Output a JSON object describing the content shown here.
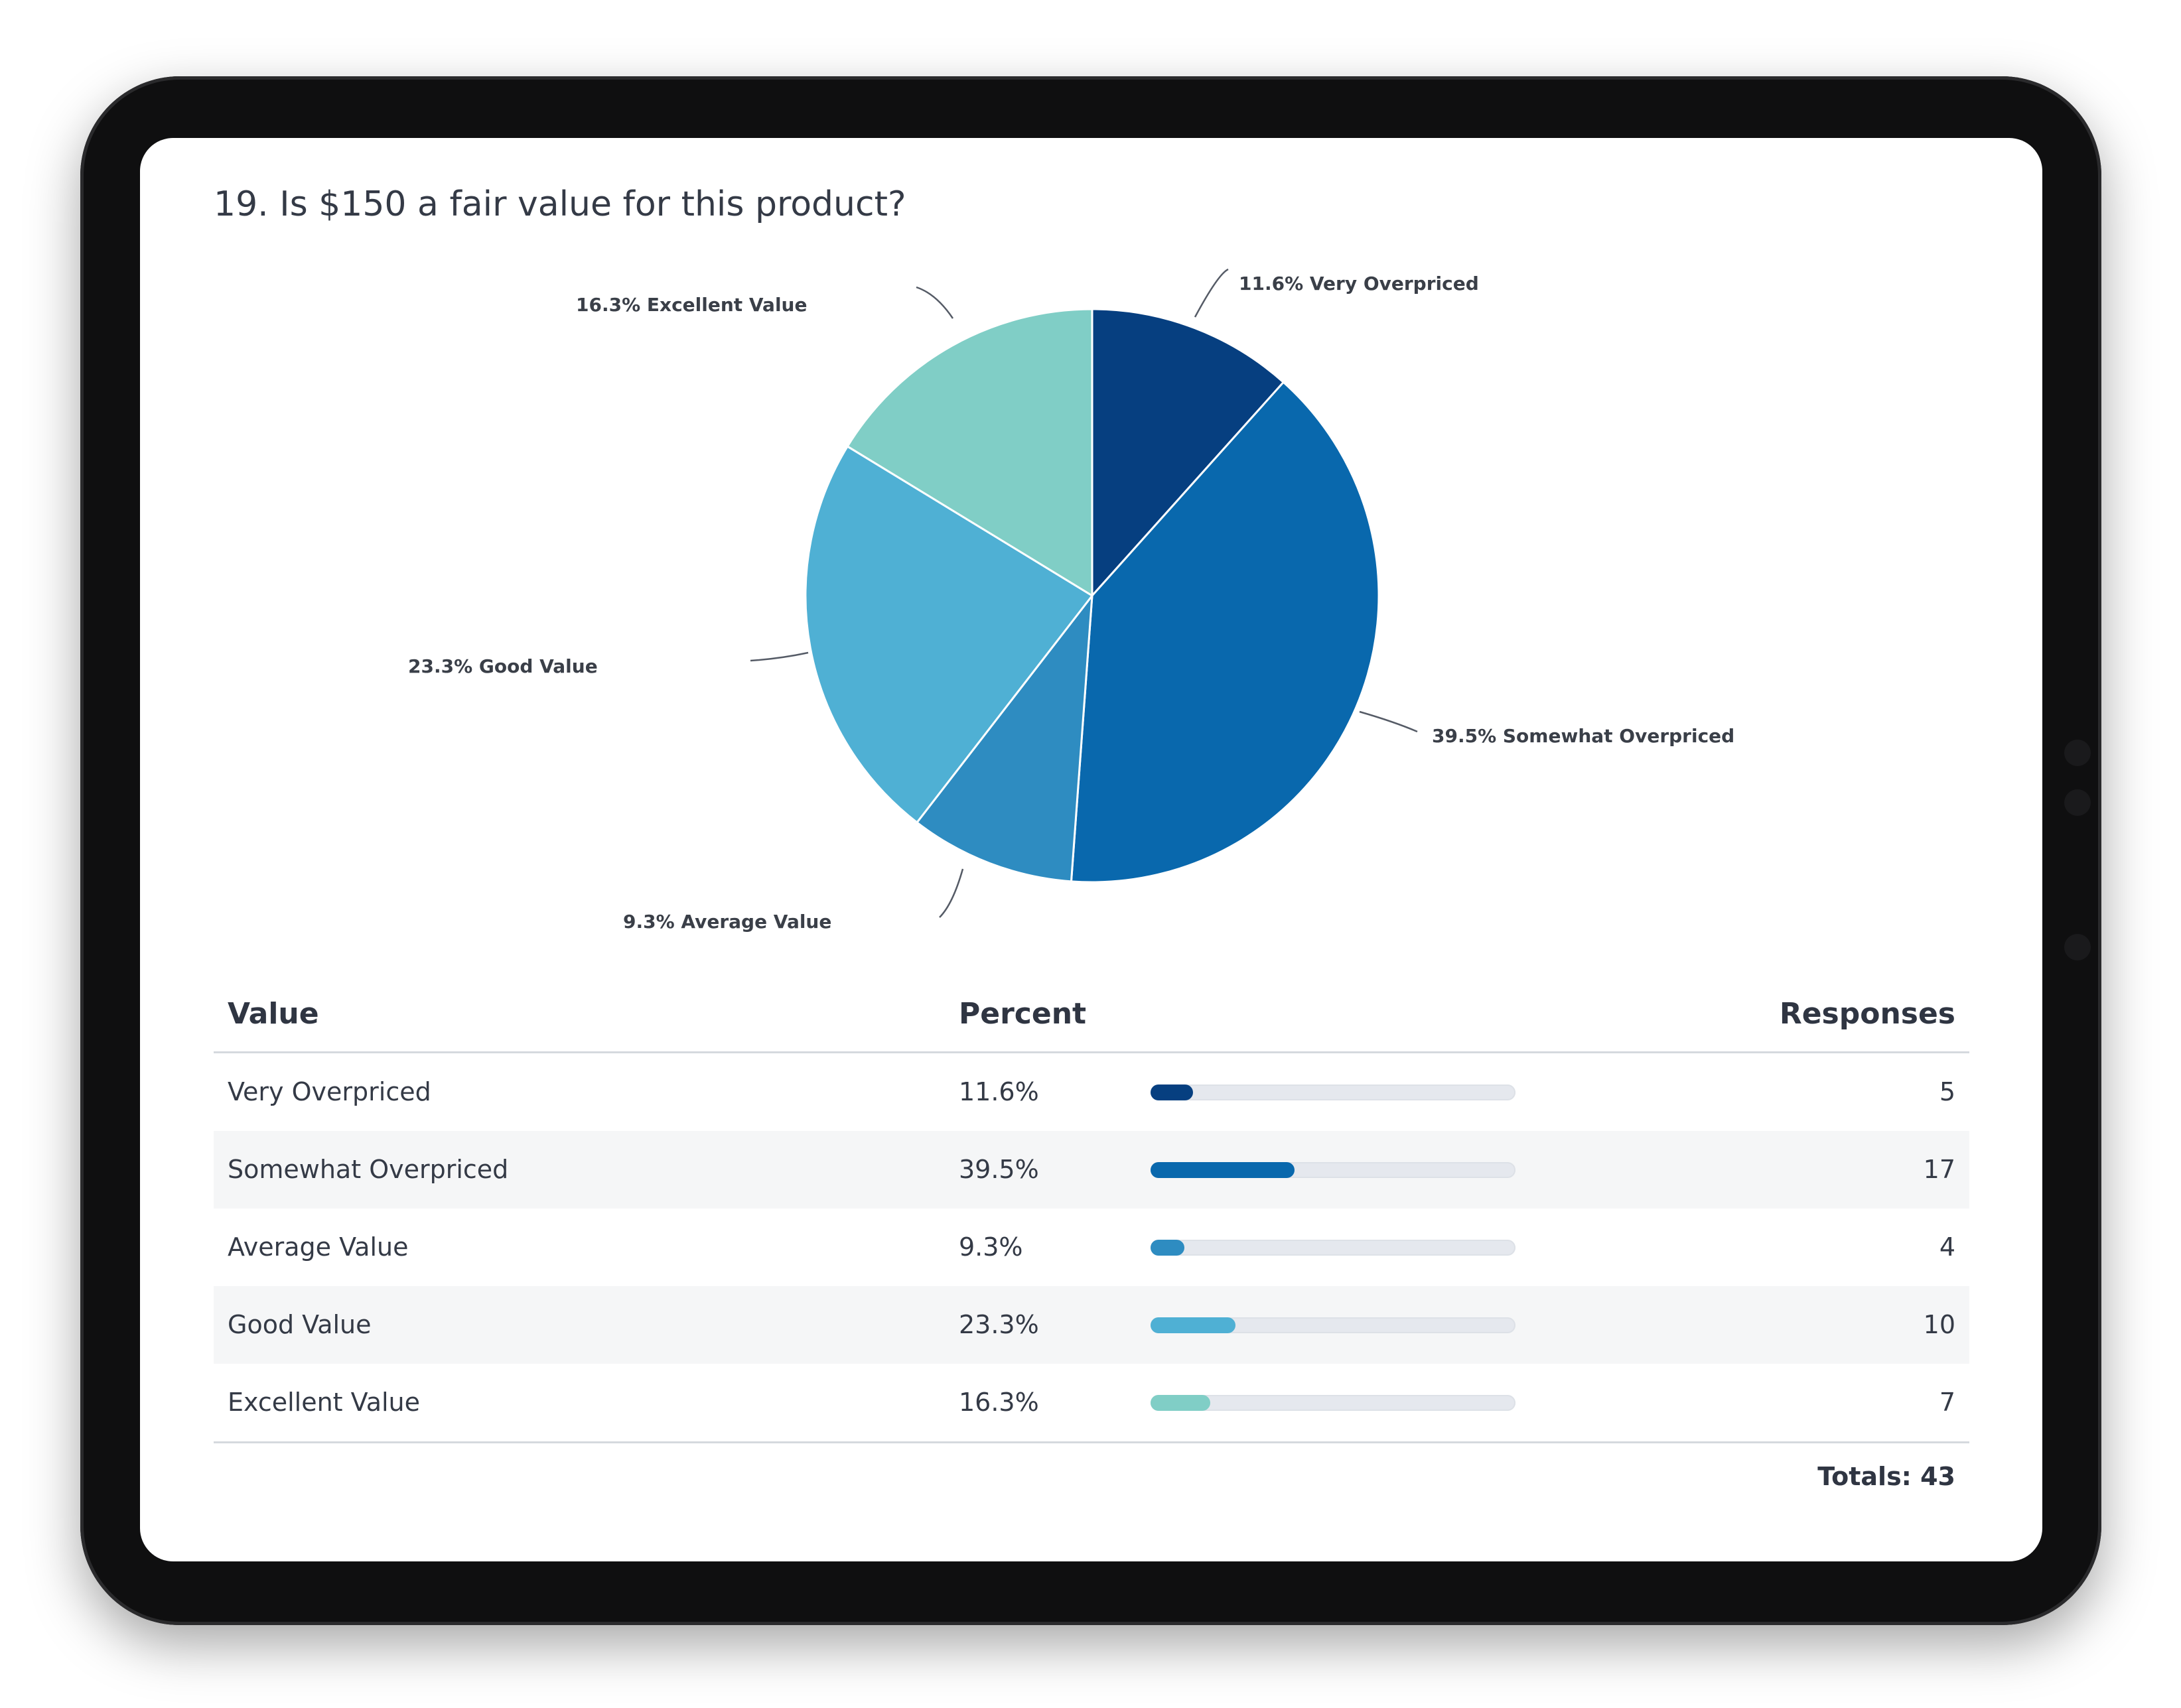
{
  "question": {
    "title": "19. Is $150 a fair value for this product?"
  },
  "colors": {
    "very_overpriced": "#063f80",
    "somewhat_overpriced": "#0968ad",
    "average_value": "#2e8cc1",
    "good_value": "#4fb0d4",
    "excellent_value": "#80cec6"
  },
  "chart_data": {
    "type": "pie",
    "title": "",
    "slices": [
      {
        "label": "Very Overpriced",
        "percent": 11.6,
        "value": 5,
        "display": "11.6% Very Overpriced",
        "color": "#063f80"
      },
      {
        "label": "Somewhat Overpriced",
        "percent": 39.5,
        "value": 17,
        "display": "39.5% Somewhat Overpriced",
        "color": "#0968ad"
      },
      {
        "label": "Average Value",
        "percent": 9.3,
        "value": 4,
        "display": "9.3% Average Value",
        "color": "#2e8cc1"
      },
      {
        "label": "Good Value",
        "percent": 23.3,
        "value": 10,
        "display": "23.3% Good Value",
        "color": "#4fb0d4"
      },
      {
        "label": "Excellent Value",
        "percent": 16.3,
        "value": 7,
        "display": "16.3% Excellent Value",
        "color": "#80cec6"
      }
    ]
  },
  "table": {
    "headers": {
      "value": "Value",
      "percent": "Percent",
      "responses": "Responses"
    },
    "rows": [
      {
        "value": "Very Overpriced",
        "percent": "11.6%",
        "fraction": 0.116,
        "responses": "5",
        "color": "#063f80"
      },
      {
        "value": "Somewhat Overpriced",
        "percent": "39.5%",
        "fraction": 0.395,
        "responses": "17",
        "color": "#0968ad"
      },
      {
        "value": "Average Value",
        "percent": "9.3%",
        "fraction": 0.093,
        "responses": "4",
        "color": "#2e8cc1"
      },
      {
        "value": "Good Value",
        "percent": "23.3%",
        "fraction": 0.233,
        "responses": "10",
        "color": "#4fb0d4"
      },
      {
        "value": "Excellent Value",
        "percent": "16.3%",
        "fraction": 0.163,
        "responses": "7",
        "color": "#80cec6"
      }
    ],
    "totals": "Totals: 43"
  }
}
